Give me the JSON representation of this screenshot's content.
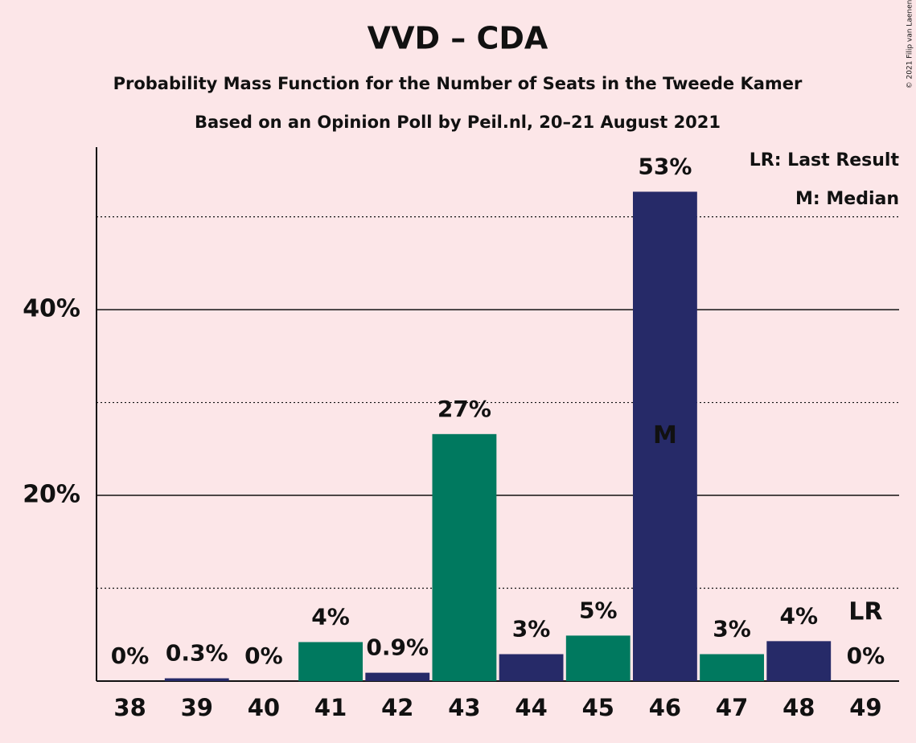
{
  "chart_data": {
    "type": "bar",
    "title": "VVD – CDA",
    "subtitles": [
      "Probability Mass Function for the Number of Seats in the Tweede Kamer",
      "Based on an Opinion Poll by Peil.nl, 20–21 August 2021"
    ],
    "categories": [
      "38",
      "39",
      "40",
      "41",
      "42",
      "43",
      "44",
      "45",
      "46",
      "47",
      "48",
      "49"
    ],
    "values": [
      0,
      0.3,
      0,
      4.2,
      0.9,
      26.6,
      2.9,
      4.9,
      52.7,
      2.9,
      4.3,
      0
    ],
    "value_labels": [
      "0%",
      "0.3%",
      "0%",
      "4%",
      "0.9%",
      "27%",
      "3%",
      "5%",
      "53%",
      "3%",
      "4%",
      "0%"
    ],
    "colors": [
      "#262a68",
      "#262a68",
      "#00795f",
      "#00795f",
      "#262a68",
      "#00795f",
      "#262a68",
      "#00795f",
      "#262a68",
      "#00795f",
      "#262a68",
      "#00795f"
    ],
    "ylim": [
      0,
      57.5
    ],
    "yticks": [
      {
        "value": 20,
        "label": "20%"
      },
      {
        "value": 40,
        "label": "40%"
      }
    ],
    "minor_yticks": [
      10,
      30,
      50
    ],
    "grid": true,
    "median": {
      "category": "46",
      "label": "M"
    },
    "last_result": {
      "category": "49",
      "label": "LR"
    },
    "legend": [
      "LR: Last Result",
      "M: Median"
    ],
    "copyright": "© 2021 Filip van Laenen"
  }
}
